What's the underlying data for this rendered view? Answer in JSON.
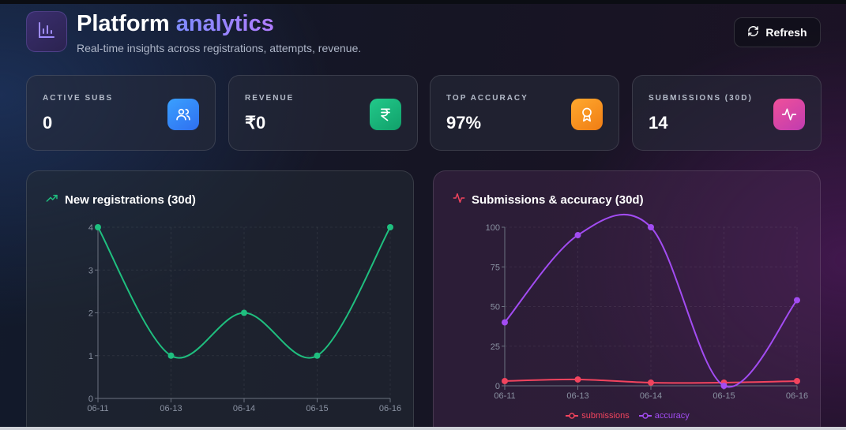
{
  "header": {
    "title_main": "Platform",
    "title_accent": "analytics",
    "subtitle": "Real-time insights across registrations, attempts, revenue.",
    "refresh_label": "Refresh"
  },
  "stats": [
    {
      "label": "ACTIVE SUBS",
      "value": "0",
      "icon": "users-icon",
      "color": "#2f8cf5"
    },
    {
      "label": "REVENUE",
      "value": "₹0",
      "icon": "rupee-icon",
      "color": "#16b57a"
    },
    {
      "label": "TOP ACCURACY",
      "value": "97%",
      "icon": "award-icon",
      "color": "#f59324"
    },
    {
      "label": "SUBMISSIONS (30D)",
      "value": "14",
      "icon": "activity-icon",
      "color": "#e0449a"
    }
  ],
  "chart_data": [
    {
      "type": "line",
      "title": "New registrations (30d)",
      "x": [
        "06-11",
        "06-13",
        "06-14",
        "06-15",
        "06-16"
      ],
      "series": [
        {
          "values": [
            4,
            1,
            2,
            1,
            4
          ],
          "color": "#1fbf7f"
        }
      ],
      "ylim": [
        0,
        4
      ],
      "yticks": [
        0,
        1,
        2,
        3,
        4
      ],
      "grid": true,
      "xlabel": "",
      "ylabel": ""
    },
    {
      "type": "line",
      "title": "Submissions & accuracy (30d)",
      "x": [
        "06-11",
        "06-13",
        "06-14",
        "06-15",
        "06-16"
      ],
      "series": [
        {
          "name": "submissions",
          "values": [
            3,
            4,
            2,
            2,
            3
          ],
          "color": "#f2445e"
        },
        {
          "name": "accuracy",
          "values": [
            40,
            95,
            100,
            0,
            54
          ],
          "color": "#a24cf2"
        }
      ],
      "ylim": [
        0,
        100
      ],
      "yticks": [
        0,
        25,
        50,
        75,
        100
      ],
      "grid": true,
      "legend": "bottom",
      "xlabel": "",
      "ylabel": ""
    }
  ]
}
